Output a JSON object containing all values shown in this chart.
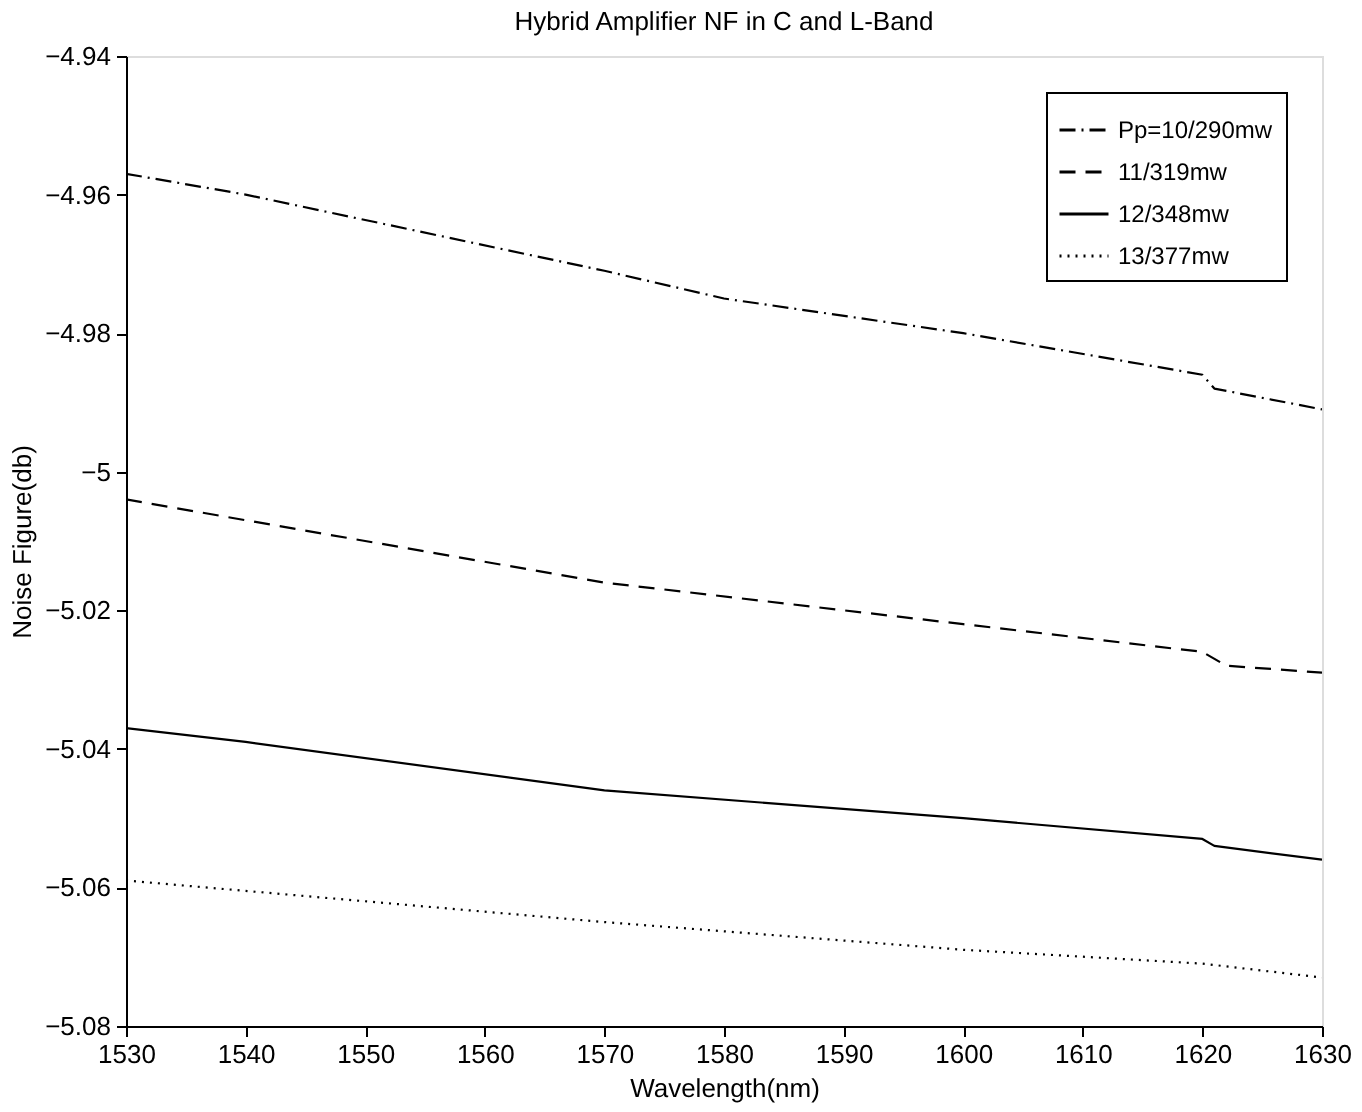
{
  "chart_data": {
    "type": "line",
    "title": "Hybrid Amplifier NF in C and L-Band",
    "xlabel": "Wavelength(nm)",
    "ylabel": "Noise Figure(db)",
    "xlim": [
      1530,
      1630
    ],
    "xticks": [
      1530,
      1540,
      1550,
      1560,
      1570,
      1580,
      1590,
      1600,
      1610,
      1620,
      1630
    ],
    "ylim": [
      -5.08,
      -4.94
    ],
    "yticks": [
      -5.08,
      -5.06,
      -5.04,
      -5.02,
      -5,
      -4.98,
      -4.96,
      -4.94
    ],
    "grid": false,
    "legend": "top right",
    "series": [
      {
        "name": "Pp=10/290mw",
        "color": "#000000",
        "line_style": "dashdot",
        "x": [
          1530,
          1540,
          1570,
          1580,
          1600,
          1620,
          1621,
          1630
        ],
        "values": [
          -4.957,
          -4.96,
          -4.971,
          -4.975,
          -4.98,
          -4.986,
          -4.988,
          -4.991
        ]
      },
      {
        "name": "11/319mw",
        "color": "#000000",
        "line_style": "dashed",
        "x": [
          1530,
          1540,
          1570,
          1600,
          1620,
          1622,
          1630
        ],
        "values": [
          -5.004,
          -5.007,
          -5.016,
          -5.022,
          -5.026,
          -5.028,
          -5.029
        ]
      },
      {
        "name": "12/348mw",
        "color": "#000000",
        "line_style": "solid",
        "x": [
          1530,
          1540,
          1570,
          1600,
          1620,
          1621,
          1630
        ],
        "values": [
          -5.037,
          -5.039,
          -5.046,
          -5.05,
          -5.053,
          -5.054,
          -5.056
        ]
      },
      {
        "name": "13/377mw",
        "color": "#000000",
        "line_style": "dotted",
        "x": [
          1530,
          1570,
          1600,
          1620,
          1630
        ],
        "values": [
          -5.059,
          -5.065,
          -5.069,
          -5.071,
          -5.073
        ]
      }
    ]
  }
}
